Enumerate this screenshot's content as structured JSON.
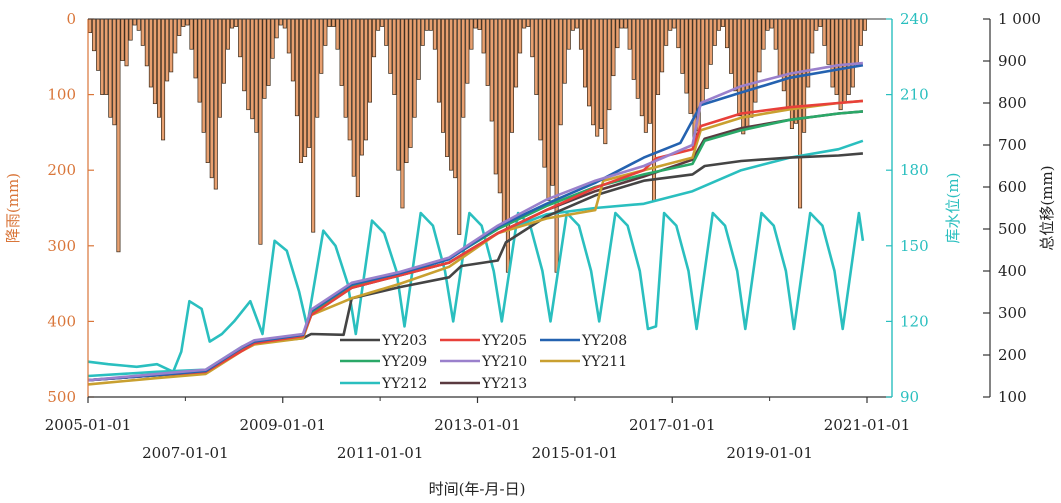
{
  "chart_data": {
    "type": "bar+line",
    "xlabel": "时间(年-月-日)",
    "x_ticks_top": [
      "2005-01-01",
      "2009-01-01",
      "2013-01-01",
      "2017-01-01",
      "2021-01-01"
    ],
    "x_ticks_bottom": [
      "2007-01-01",
      "2011-01-01",
      "2015-01-01",
      "2019-01-01"
    ],
    "xlim": [
      "2005-01-01",
      "2021-01-01"
    ],
    "rain_axis": {
      "label": "降雨(mm)",
      "ticks": [
        "0",
        "100",
        "200",
        "300",
        "400",
        "500"
      ],
      "range": [
        0,
        500
      ],
      "inverted": true
    },
    "water_axis": {
      "label": "库水位(m)",
      "ticks": [
        "90",
        "120",
        "150",
        "180",
        "210",
        "240"
      ],
      "range": [
        90,
        240
      ]
    },
    "disp_axis": {
      "label": "总位移(mm)",
      "ticks": [
        "100",
        "200",
        "300",
        "400",
        "500",
        "600",
        "700",
        "800",
        "900",
        "1 000"
      ],
      "range": [
        100,
        1000
      ]
    },
    "colors": {
      "rain": "#e8a070",
      "rain_edge": "#3a2a1a",
      "rain_axis": "#d9763a",
      "water_axis": "#2abfbf",
      "axis": "#333333",
      "YY203": "#444444",
      "YY205": "#e8403a",
      "YY208": "#2462b0",
      "YY209": "#2aa868",
      "YY210": "#9a80cc",
      "YY211": "#c9a030",
      "YY212": "#2abfbf",
      "YY213": "#5a3a40"
    },
    "rainfall": {
      "start": "2005-01",
      "unit": "mm/month",
      "values": [
        18,
        42,
        68,
        100,
        100,
        130,
        140,
        308,
        55,
        62,
        28,
        8,
        15,
        35,
        62,
        90,
        112,
        130,
        160,
        82,
        70,
        45,
        22,
        10,
        8,
        40,
        78,
        110,
        150,
        190,
        210,
        225,
        130,
        85,
        40,
        12,
        10,
        50,
        95,
        120,
        132,
        150,
        298,
        105,
        88,
        52,
        25,
        8,
        12,
        45,
        82,
        128,
        190,
        182,
        170,
        282,
        130,
        72,
        35,
        10,
        10,
        40,
        88,
        130,
        160,
        208,
        235,
        180,
        160,
        110,
        50,
        15,
        10,
        35,
        72,
        100,
        200,
        250,
        190,
        170,
        130,
        80,
        35,
        15,
        15,
        40,
        110,
        150,
        182,
        200,
        210,
        285,
        130,
        85,
        40,
        12,
        14,
        45,
        88,
        135,
        205,
        230,
        270,
        335,
        150,
        90,
        45,
        12,
        10,
        50,
        100,
        160,
        196,
        240,
        220,
        335,
        140,
        85,
        40,
        15,
        12,
        40,
        90,
        115,
        140,
        155,
        145,
        165,
        120,
        75,
        38,
        12,
        12,
        40,
        80,
        105,
        128,
        150,
        138,
        240,
        100,
        70,
        35,
        15,
        12,
        38,
        72,
        98,
        125,
        160,
        148,
        112,
        92,
        60,
        35,
        15,
        10,
        38,
        72,
        95,
        128,
        152,
        142,
        130,
        110,
        70,
        40,
        15,
        12,
        40,
        75,
        95,
        120,
        145,
        138,
        250,
        150,
        90,
        45,
        15,
        10,
        35,
        60,
        90,
        100,
        120,
        110,
        100,
        90,
        60,
        35,
        15
      ]
    },
    "series": [
      {
        "name": "YY203",
        "axis": "disp",
        "points": [
          [
            "2005-01",
            140
          ],
          [
            "2006-06",
            152
          ],
          [
            "2007-06",
            160
          ],
          [
            "2008-03",
            215
          ],
          [
            "2008-06",
            228
          ],
          [
            "2009-06",
            240
          ],
          [
            "2009-08",
            250
          ],
          [
            "2010-04",
            248
          ],
          [
            "2010-06",
            335
          ],
          [
            "2011-06",
            362
          ],
          [
            "2012-06",
            385
          ],
          [
            "2012-09",
            412
          ],
          [
            "2013-06",
            425
          ],
          [
            "2013-08",
            468
          ],
          [
            "2014-06",
            530
          ],
          [
            "2015-06",
            580
          ],
          [
            "2016-06",
            615
          ],
          [
            "2017-06",
            630
          ],
          [
            "2017-09",
            650
          ],
          [
            "2018-06",
            662
          ],
          [
            "2019-06",
            670
          ],
          [
            "2020-06",
            675
          ],
          [
            "2020-12",
            680
          ]
        ]
      },
      {
        "name": "YY205",
        "axis": "disp",
        "points": [
          [
            "2005-01",
            140
          ],
          [
            "2006-06",
            152
          ],
          [
            "2007-06",
            160
          ],
          [
            "2008-03",
            210
          ],
          [
            "2008-06",
            228
          ],
          [
            "2009-06",
            245
          ],
          [
            "2009-08",
            295
          ],
          [
            "2010-06",
            360
          ],
          [
            "2011-06",
            390
          ],
          [
            "2012-06",
            420
          ],
          [
            "2013-06",
            490
          ],
          [
            "2014-06",
            545
          ],
          [
            "2015-06",
            598
          ],
          [
            "2016-06",
            640
          ],
          [
            "2016-09",
            668
          ],
          [
            "2017-06",
            690
          ],
          [
            "2017-08",
            745
          ],
          [
            "2018-06",
            775
          ],
          [
            "2019-06",
            790
          ],
          [
            "2020-06",
            800
          ],
          [
            "2020-12",
            805
          ]
        ]
      },
      {
        "name": "YY208",
        "axis": "disp",
        "points": [
          [
            "2005-01",
            140
          ],
          [
            "2006-06",
            152
          ],
          [
            "2007-06",
            162
          ],
          [
            "2008-03",
            218
          ],
          [
            "2008-06",
            232
          ],
          [
            "2009-06",
            248
          ],
          [
            "2009-08",
            305
          ],
          [
            "2010-06",
            368
          ],
          [
            "2011-06",
            395
          ],
          [
            "2012-06",
            428
          ],
          [
            "2013-06",
            505
          ],
          [
            "2014-06",
            560
          ],
          [
            "2015-06",
            610
          ],
          [
            "2016-06",
            670
          ],
          [
            "2017-03",
            705
          ],
          [
            "2017-08",
            795
          ],
          [
            "2018-06",
            825
          ],
          [
            "2019-06",
            860
          ],
          [
            "2020-06",
            880
          ],
          [
            "2020-12",
            890
          ]
        ]
      },
      {
        "name": "YY209",
        "axis": "disp",
        "points": [
          [
            "2005-01",
            140
          ],
          [
            "2006-06",
            153
          ],
          [
            "2007-06",
            162
          ],
          [
            "2008-03",
            214
          ],
          [
            "2008-06",
            230
          ],
          [
            "2009-06",
            246
          ],
          [
            "2009-08",
            300
          ],
          [
            "2010-06",
            365
          ],
          [
            "2011-06",
            392
          ],
          [
            "2012-06",
            430
          ],
          [
            "2013-06",
            500
          ],
          [
            "2014-06",
            555
          ],
          [
            "2015-06",
            600
          ],
          [
            "2016-06",
            630
          ],
          [
            "2017-06",
            655
          ],
          [
            "2017-09",
            710
          ],
          [
            "2018-06",
            735
          ],
          [
            "2019-06",
            760
          ],
          [
            "2020-06",
            775
          ],
          [
            "2020-12",
            780
          ]
        ]
      },
      {
        "name": "YY210",
        "axis": "disp",
        "points": [
          [
            "2005-01",
            140
          ],
          [
            "2006-06",
            155
          ],
          [
            "2007-06",
            165
          ],
          [
            "2008-03",
            220
          ],
          [
            "2008-06",
            235
          ],
          [
            "2009-06",
            250
          ],
          [
            "2009-08",
            308
          ],
          [
            "2010-06",
            372
          ],
          [
            "2011-06",
            398
          ],
          [
            "2012-06",
            432
          ],
          [
            "2013-06",
            508
          ],
          [
            "2014-06",
            570
          ],
          [
            "2015-06",
            615
          ],
          [
            "2016-06",
            650
          ],
          [
            "2017-06",
            700
          ],
          [
            "2017-08",
            800
          ],
          [
            "2018-06",
            840
          ],
          [
            "2019-06",
            870
          ],
          [
            "2020-06",
            890
          ],
          [
            "2020-12",
            895
          ]
        ]
      },
      {
        "name": "YY211",
        "axis": "disp",
        "points": [
          [
            "2005-01",
            130
          ],
          [
            "2006-06",
            145
          ],
          [
            "2007-06",
            155
          ],
          [
            "2008-03",
            210
          ],
          [
            "2008-06",
            225
          ],
          [
            "2009-06",
            240
          ],
          [
            "2009-08",
            295
          ],
          [
            "2010-06",
            335
          ],
          [
            "2011-06",
            370
          ],
          [
            "2012-06",
            410
          ],
          [
            "2013-06",
            490
          ],
          [
            "2014-06",
            525
          ],
          [
            "2015-06",
            545
          ],
          [
            "2015-08",
            615
          ],
          [
            "2016-06",
            640
          ],
          [
            "2017-06",
            670
          ],
          [
            "2017-08",
            735
          ],
          [
            "2018-06",
            765
          ],
          [
            "2019-06",
            785
          ],
          [
            "2020-06",
            800
          ],
          [
            "2020-12",
            805
          ]
        ]
      },
      {
        "name": "YY212",
        "axis": "disp",
        "points": [
          [
            "2005-01",
            150
          ],
          [
            "2006-06",
            160
          ],
          [
            "2007-06",
            165
          ],
          [
            "2008-03",
            220
          ],
          [
            "2008-06",
            230
          ],
          [
            "2009-06",
            245
          ],
          [
            "2009-08",
            295
          ],
          [
            "2010-06",
            360
          ],
          [
            "2011-06",
            392
          ],
          [
            "2012-06",
            420
          ],
          [
            "2013-06",
            490
          ],
          [
            "2014-06",
            535
          ],
          [
            "2015-06",
            550
          ],
          [
            "2016-06",
            560
          ],
          [
            "2017-06",
            590
          ],
          [
            "2018-06",
            640
          ],
          [
            "2019-06",
            670
          ],
          [
            "2020-06",
            690
          ],
          [
            "2020-12",
            710
          ]
        ]
      },
      {
        "name": "YY213",
        "axis": "disp",
        "points": [
          [
            "2005-01",
            140
          ],
          [
            "2006-06",
            152
          ],
          [
            "2007-06",
            160
          ],
          [
            "2008-03",
            214
          ],
          [
            "2008-06",
            230
          ],
          [
            "2009-06",
            245
          ],
          [
            "2009-08",
            300
          ],
          [
            "2010-06",
            360
          ],
          [
            "2011-06",
            390
          ],
          [
            "2012-06",
            420
          ],
          [
            "2013-06",
            490
          ],
          [
            "2014-06",
            545
          ],
          [
            "2015-06",
            590
          ],
          [
            "2016-06",
            625
          ],
          [
            "2017-06",
            665
          ],
          [
            "2017-09",
            715
          ],
          [
            "2018-06",
            740
          ],
          [
            "2019-06",
            760
          ],
          [
            "2020-06",
            775
          ],
          [
            "2020-12",
            780
          ]
        ]
      },
      {
        "name": "",
        "axis": "water",
        "points": [
          [
            "2005-01",
            104
          ],
          [
            "2005-06",
            103
          ],
          [
            "2006-01",
            102
          ],
          [
            "2006-06",
            103
          ],
          [
            "2006-10",
            100
          ],
          [
            "2006-12",
            108
          ],
          [
            "2007-02",
            128
          ],
          [
            "2007-05",
            125
          ],
          [
            "2007-07",
            112
          ],
          [
            "2007-10",
            115
          ],
          [
            "2008-01",
            120
          ],
          [
            "2008-05",
            128
          ],
          [
            "2008-08",
            115
          ],
          [
            "2008-11",
            152
          ],
          [
            "2009-02",
            148
          ],
          [
            "2009-05",
            132
          ],
          [
            "2009-07",
            118
          ],
          [
            "2009-11",
            156
          ],
          [
            "2010-02",
            150
          ],
          [
            "2010-05",
            135
          ],
          [
            "2010-07",
            115
          ],
          [
            "2010-11",
            160
          ],
          [
            "2011-02",
            155
          ],
          [
            "2011-05",
            140
          ],
          [
            "2011-07",
            118
          ],
          [
            "2011-11",
            163
          ],
          [
            "2012-02",
            158
          ],
          [
            "2012-05",
            140
          ],
          [
            "2012-07",
            120
          ],
          [
            "2012-11",
            163
          ],
          [
            "2013-02",
            158
          ],
          [
            "2013-05",
            140
          ],
          [
            "2013-07",
            120
          ],
          [
            "2013-11",
            163
          ],
          [
            "2014-02",
            158
          ],
          [
            "2014-05",
            140
          ],
          [
            "2014-07",
            120
          ],
          [
            "2014-11",
            163
          ],
          [
            "2015-02",
            158
          ],
          [
            "2015-05",
            140
          ],
          [
            "2015-07",
            120
          ],
          [
            "2015-11",
            163
          ],
          [
            "2016-02",
            158
          ],
          [
            "2016-05",
            140
          ],
          [
            "2016-07",
            117
          ],
          [
            "2016-09",
            118
          ],
          [
            "2016-11",
            163
          ],
          [
            "2017-02",
            158
          ],
          [
            "2017-05",
            140
          ],
          [
            "2017-07",
            117
          ],
          [
            "2017-11",
            163
          ],
          [
            "2018-02",
            158
          ],
          [
            "2018-05",
            140
          ],
          [
            "2018-07",
            117
          ],
          [
            "2018-11",
            163
          ],
          [
            "2019-02",
            158
          ],
          [
            "2019-05",
            140
          ],
          [
            "2019-07",
            117
          ],
          [
            "2019-11",
            163
          ],
          [
            "2020-02",
            158
          ],
          [
            "2020-05",
            140
          ],
          [
            "2020-07",
            117
          ],
          [
            "2020-11",
            163
          ],
          [
            "2020-12",
            152
          ]
        ]
      }
    ],
    "legend": [
      "YY203",
      "YY205",
      "YY208",
      "YY209",
      "YY210",
      "YY211",
      "YY212",
      "YY213"
    ]
  }
}
